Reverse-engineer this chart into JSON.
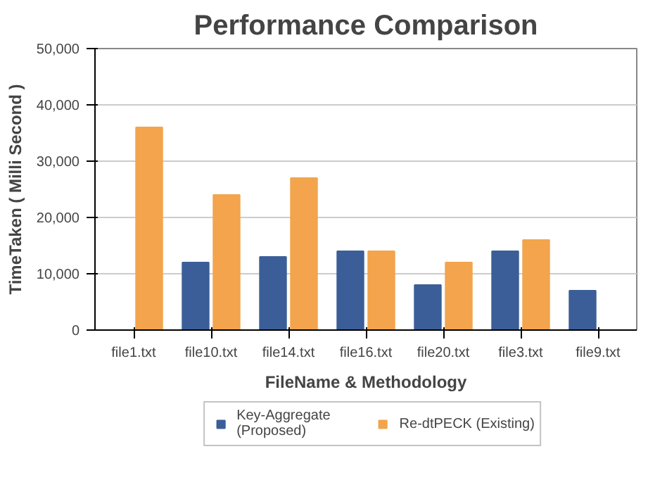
{
  "chart_data": {
    "type": "bar",
    "title": "Performance Comparison",
    "xlabel": "FileName & Methodology",
    "ylabel": "TimeTaken ( Milli Second )",
    "categories": [
      "file1.txt",
      "file10.txt",
      "file14.txt",
      "file16.txt",
      "file20.txt",
      "file3.txt",
      "file9.txt"
    ],
    "series": [
      {
        "name": "Key-Aggregate\n(Proposed)",
        "color": "#3b5e98",
        "values": [
          null,
          12000,
          13000,
          14000,
          8000,
          14000,
          7000
        ]
      },
      {
        "name": "Re-dtPECK (Existing)",
        "color": "#f3a44c",
        "values": [
          36000,
          24000,
          27000,
          14000,
          12000,
          16000,
          null
        ]
      }
    ],
    "ylim": [
      0,
      50000
    ],
    "yticks": [
      {
        "value": 0,
        "label": "0"
      },
      {
        "value": 10000,
        "label": "10,000"
      },
      {
        "value": 20000,
        "label": "20,000"
      },
      {
        "value": 30000,
        "label": "30,000"
      },
      {
        "value": 40000,
        "label": "40,000"
      },
      {
        "value": 50000,
        "label": "50,000"
      }
    ],
    "grid": "y",
    "legend": "bottom"
  }
}
